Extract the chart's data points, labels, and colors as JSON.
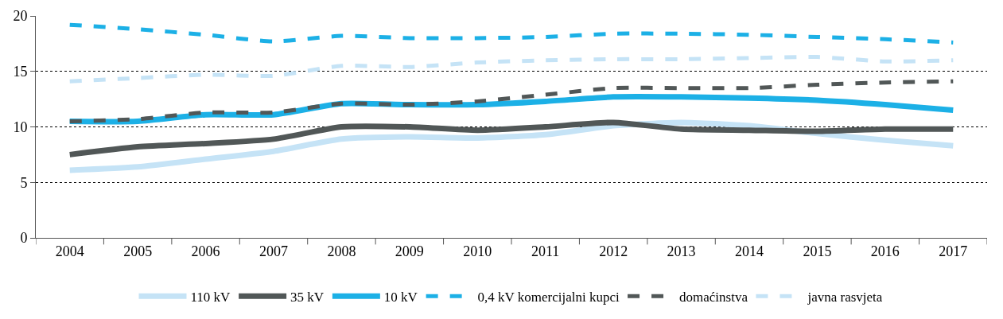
{
  "chart_data": {
    "type": "line",
    "categories": [
      "2004",
      "2005",
      "2006",
      "2007",
      "2008",
      "2009",
      "2010",
      "2011",
      "2012",
      "2013",
      "2014",
      "2015",
      "2016",
      "2017"
    ],
    "series": [
      {
        "name": "110 kV",
        "color": "#c5e3f6",
        "line_style": "solid",
        "values": [
          6.1,
          6.4,
          7.1,
          7.8,
          8.9,
          9.1,
          9.0,
          9.3,
          10.1,
          10.4,
          10.1,
          9.4,
          8.8,
          8.3
        ]
      },
      {
        "name": "35 kV",
        "color": "#515757",
        "line_style": "solid",
        "values": [
          7.5,
          8.2,
          8.5,
          8.9,
          10.0,
          10.0,
          9.7,
          10.0,
          10.4,
          9.8,
          9.7,
          9.6,
          9.8,
          9.8
        ]
      },
      {
        "name": "10 kV",
        "color": "#1cb0e6",
        "line_style": "solid",
        "values": [
          10.5,
          10.5,
          11.1,
          11.1,
          12.1,
          12.0,
          12.0,
          12.3,
          12.7,
          12.7,
          12.6,
          12.4,
          12.0,
          11.5
        ]
      },
      {
        "name": "0,4 kV komercijalni kupci",
        "color": "#1cb0e6",
        "line_style": "dashed",
        "values": [
          19.2,
          18.8,
          18.3,
          17.7,
          18.2,
          18.0,
          18.0,
          18.1,
          18.4,
          18.4,
          18.3,
          18.1,
          17.9,
          17.6
        ]
      },
      {
        "name": "domaćinstva",
        "color": "#515757",
        "line_style": "dashed",
        "values": [
          10.5,
          10.7,
          11.3,
          11.3,
          12.1,
          12.0,
          12.3,
          12.9,
          13.5,
          13.5,
          13.5,
          13.8,
          14.0,
          14.1
        ]
      },
      {
        "name": "javna rasvjeta",
        "color": "#c5e3f6",
        "line_style": "dashed",
        "values": [
          14.1,
          14.4,
          14.7,
          14.6,
          15.5,
          15.4,
          15.8,
          16.0,
          16.1,
          16.1,
          16.2,
          16.3,
          15.9,
          16.0
        ]
      }
    ],
    "ylim": [
      0,
      20
    ],
    "yticks": [
      0,
      5,
      10,
      15,
      20
    ],
    "grid": "y",
    "legend": "bottom",
    "marker": "none"
  }
}
